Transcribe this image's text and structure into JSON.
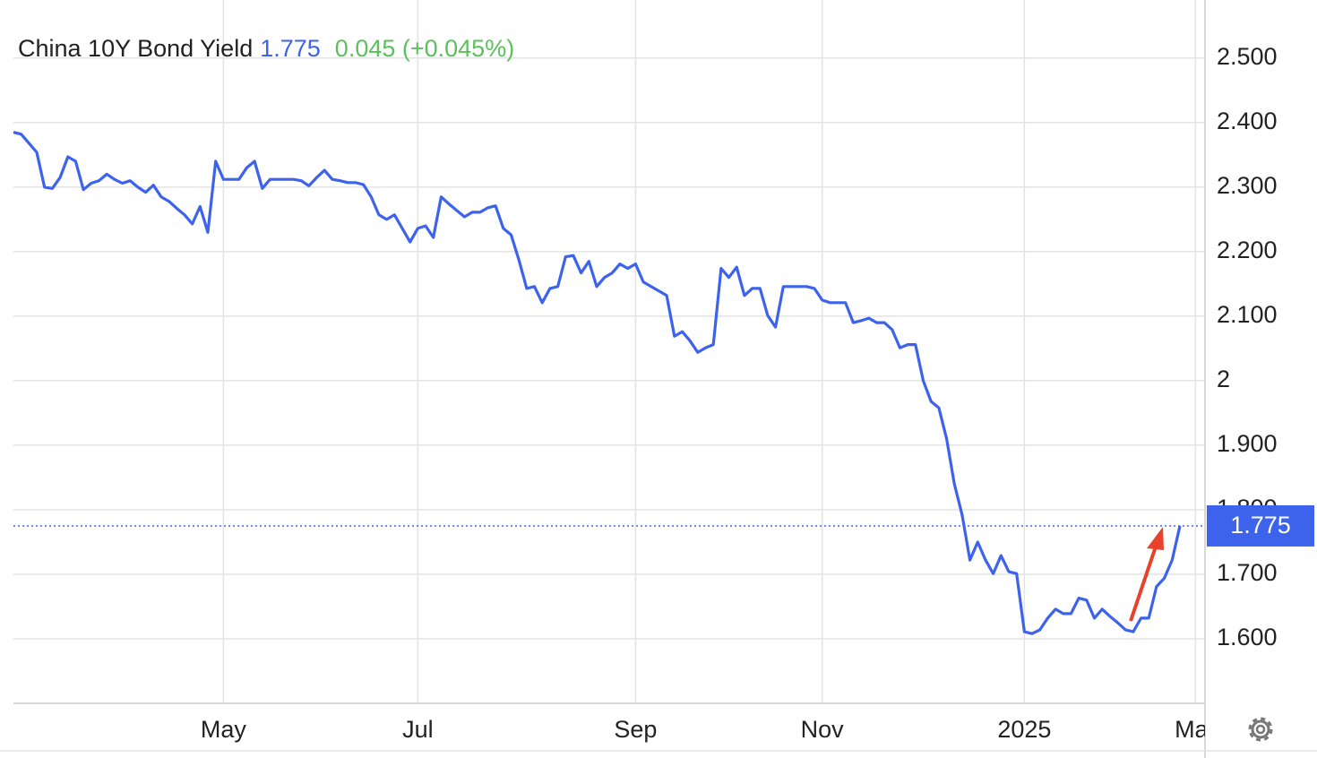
{
  "chart_data": {
    "type": "line",
    "title": "China 10Y Bond Yield",
    "last": "1.775",
    "change": "0.045 (+0.045%)",
    "color": "#3d63ec",
    "values": [
      2.385,
      2.382,
      2.368,
      2.354,
      2.3,
      2.298,
      2.315,
      2.347,
      2.34,
      2.296,
      2.306,
      2.31,
      2.32,
      2.312,
      2.306,
      2.31,
      2.3,
      2.292,
      2.303,
      2.285,
      2.278,
      2.267,
      2.257,
      2.243,
      2.27,
      2.23,
      2.34,
      2.312,
      2.312,
      2.312,
      2.33,
      2.34,
      2.298,
      2.312,
      2.312,
      2.312,
      2.312,
      2.31,
      2.302,
      2.315,
      2.326,
      2.312,
      2.31,
      2.307,
      2.307,
      2.304,
      2.285,
      2.257,
      2.25,
      2.257,
      2.236,
      2.215,
      2.236,
      2.24,
      2.222,
      2.285,
      2.274,
      2.264,
      2.254,
      2.261,
      2.261,
      2.268,
      2.271,
      2.236,
      2.226,
      2.187,
      2.143,
      2.146,
      2.121,
      2.143,
      2.146,
      2.192,
      2.194,
      2.167,
      2.185,
      2.146,
      2.16,
      2.167,
      2.181,
      2.174,
      2.181,
      2.153,
      2.146,
      2.139,
      2.132,
      2.069,
      2.076,
      2.062,
      2.044,
      2.051,
      2.056,
      2.174,
      2.16,
      2.176,
      2.132,
      2.143,
      2.143,
      2.101,
      2.083,
      2.146,
      2.146,
      2.146,
      2.146,
      2.143,
      2.125,
      2.121,
      2.121,
      2.121,
      2.09,
      2.093,
      2.097,
      2.09,
      2.09,
      2.079,
      2.051,
      2.056,
      2.056,
      2.0,
      1.968,
      1.958,
      1.91,
      1.84,
      1.792,
      1.722,
      1.75,
      1.722,
      1.701,
      1.729,
      1.704,
      1.701,
      1.611,
      1.608,
      1.614,
      1.632,
      1.646,
      1.639,
      1.639,
      1.663,
      1.66,
      1.632,
      1.646,
      1.635,
      1.625,
      1.614,
      1.611,
      1.632,
      1.632,
      1.681,
      1.694,
      1.722,
      1.775
    ],
    "xlim": [
      0,
      153
    ],
    "xticks": [
      {
        "value": 27,
        "label": "May"
      },
      {
        "value": 52,
        "label": "Jul"
      },
      {
        "value": 80,
        "label": "Sep"
      },
      {
        "value": 104,
        "label": "Nov"
      },
      {
        "value": 130,
        "label": "2025"
      },
      {
        "value": 152,
        "label": "Mar"
      }
    ],
    "ylim": [
      1.5,
      2.59
    ],
    "yticks": [
      {
        "value": 1.6,
        "label": "1.600"
      },
      {
        "value": 1.7,
        "label": "1.700"
      },
      {
        "value": 1.8,
        "label": "1.800"
      },
      {
        "value": 1.9,
        "label": "1.900"
      },
      2,
      {
        "value": 2.1,
        "label": "2.100"
      },
      {
        "value": 2.2,
        "label": "2.200"
      },
      {
        "value": 2.3,
        "label": "2.300"
      },
      {
        "value": 2.4,
        "label": "2.400"
      },
      {
        "value": 2.5,
        "label": "2.500"
      }
    ],
    "grid": true
  }
}
